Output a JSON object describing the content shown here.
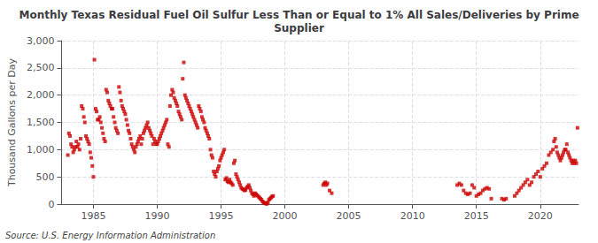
{
  "chart_data": {
    "type": "scatter",
    "title": "Monthly Texas Residual Fuel Oil Sulfur Less Than or Equal to 1% All Sales/Deliveries by Prime\nSupplier",
    "ylabel": "Thousand Gallons per Day",
    "annotation": "Source: U.S. Energy Information Administration",
    "color": "#cc0000",
    "marker": "square",
    "grid": true,
    "xlim": [
      1982.5,
      2023
    ],
    "xticks": [
      1985,
      1990,
      1995,
      2000,
      2005,
      2010,
      2015,
      2020
    ],
    "ylim": [
      0,
      3000
    ],
    "yticks": [
      0,
      500,
      {
        "value": 1000,
        "label": "1,000"
      },
      {
        "value": 1500,
        "label": "1,500"
      },
      {
        "value": 2000,
        "label": "2,000"
      },
      {
        "value": 2500,
        "label": "2,500"
      },
      {
        "value": 3000,
        "label": "3,000"
      }
    ],
    "x": [
      1983.0,
      1983.08,
      1983.17,
      1983.25,
      1983.33,
      1983.42,
      1983.5,
      1983.58,
      1983.67,
      1983.75,
      1983.83,
      1983.92,
      1984.0,
      1984.08,
      1984.17,
      1984.25,
      1984.33,
      1984.42,
      1984.5,
      1984.58,
      1984.67,
      1984.75,
      1984.83,
      1984.92,
      1985.0,
      1985.08,
      1985.17,
      1985.25,
      1985.33,
      1985.42,
      1985.5,
      1985.58,
      1985.67,
      1985.75,
      1985.83,
      1985.92,
      1986.0,
      1986.08,
      1986.17,
      1986.25,
      1986.33,
      1986.42,
      1986.5,
      1986.58,
      1986.67,
      1986.75,
      1986.83,
      1986.92,
      1987.0,
      1987.08,
      1987.17,
      1987.25,
      1987.33,
      1987.42,
      1987.5,
      1987.58,
      1987.67,
      1987.75,
      1987.83,
      1987.92,
      1988.0,
      1988.08,
      1988.17,
      1988.25,
      1988.33,
      1988.42,
      1988.5,
      1988.58,
      1988.67,
      1988.75,
      1988.83,
      1988.92,
      1989.0,
      1989.08,
      1989.17,
      1989.25,
      1989.33,
      1989.42,
      1989.5,
      1989.58,
      1989.67,
      1989.75,
      1989.83,
      1989.92,
      1990.0,
      1990.08,
      1990.17,
      1990.25,
      1990.33,
      1990.42,
      1990.5,
      1990.58,
      1990.67,
      1990.75,
      1990.83,
      1990.92,
      1991.0,
      1991.08,
      1991.17,
      1991.25,
      1991.33,
      1991.42,
      1991.5,
      1991.58,
      1991.67,
      1991.75,
      1991.83,
      1991.92,
      1992.0,
      1992.08,
      1992.17,
      1992.25,
      1992.33,
      1992.42,
      1992.5,
      1992.58,
      1992.67,
      1992.75,
      1992.83,
      1992.92,
      1993.0,
      1993.08,
      1993.17,
      1993.25,
      1993.33,
      1993.42,
      1993.5,
      1993.58,
      1993.67,
      1993.75,
      1993.83,
      1993.92,
      1994.0,
      1994.08,
      1994.17,
      1994.25,
      1994.33,
      1994.42,
      1994.5,
      1994.58,
      1994.67,
      1994.75,
      1994.83,
      1994.92,
      1995.0,
      1995.08,
      1995.17,
      1995.25,
      1995.33,
      1995.42,
      1995.5,
      1995.58,
      1995.67,
      1995.75,
      1995.83,
      1995.92,
      1996.0,
      1996.08,
      1996.17,
      1996.25,
      1996.33,
      1996.42,
      1996.5,
      1996.58,
      1996.67,
      1996.75,
      1996.83,
      1996.92,
      1997.0,
      1997.08,
      1997.17,
      1997.25,
      1997.33,
      1997.42,
      1997.5,
      1997.58,
      1997.67,
      1997.75,
      1997.83,
      1997.92,
      1998.0,
      1998.08,
      1998.17,
      1998.25,
      1998.33,
      1998.42,
      1998.5,
      1998.58,
      1998.67,
      1998.75,
      1998.83,
      1998.92,
      1999.0,
      1999.08,
      2003.0,
      2003.08,
      2003.17,
      2003.25,
      2003.33,
      2003.5,
      2003.67,
      2013.5,
      2013.67,
      2013.83,
      2014.0,
      2014.17,
      2014.33,
      2014.5,
      2014.67,
      2014.83,
      2015.0,
      2015.17,
      2015.33,
      2015.5,
      2015.67,
      2015.83,
      2016.0,
      2016.17,
      2017.0,
      2017.17,
      2017.33,
      2018.0,
      2018.17,
      2018.33,
      2018.5,
      2018.67,
      2018.83,
      2019.0,
      2019.17,
      2019.33,
      2019.5,
      2019.67,
      2019.83,
      2020.0,
      2020.17,
      2020.33,
      2020.5,
      2020.67,
      2020.83,
      2021.0,
      2021.08,
      2021.17,
      2021.25,
      2021.33,
      2021.42,
      2021.5,
      2021.58,
      2021.67,
      2021.75,
      2021.83,
      2021.92,
      2022.0,
      2022.08,
      2022.17,
      2022.25,
      2022.33,
      2022.42,
      2022.5,
      2022.58,
      2022.67,
      2022.75,
      2022.83,
      2022.92
    ],
    "values": [
      900,
      1300,
      1250,
      1100,
      1050,
      950,
      1000,
      1050,
      1150,
      1050,
      1100,
      1000,
      1200,
      1800,
      1750,
      1600,
      1500,
      1250,
      1200,
      1150,
      1100,
      950,
      850,
      700,
      500,
      2650,
      1750,
      1700,
      1550,
      1550,
      1600,
      1500,
      1400,
      1300,
      1200,
      1150,
      2100,
      2050,
      1900,
      1850,
      1800,
      1750,
      1750,
      1600,
      1500,
      1400,
      1350,
      1300,
      2150,
      2050,
      1900,
      1800,
      1750,
      1700,
      1650,
      1550,
      1450,
      1350,
      1300,
      1200,
      1100,
      1050,
      1000,
      950,
      1050,
      1100,
      1150,
      1200,
      1250,
      1100,
      1200,
      1300,
      1350,
      1400,
      1450,
      1500,
      1400,
      1350,
      1300,
      1250,
      1100,
      1200,
      1150,
      1100,
      1100,
      1150,
      1200,
      1250,
      1300,
      1350,
      1400,
      1450,
      1500,
      1550,
      1100,
      1050,
      1800,
      2000,
      2100,
      2050,
      1950,
      1900,
      1850,
      1800,
      1700,
      1650,
      1600,
      1550,
      2300,
      2600,
      2000,
      1950,
      1900,
      1850,
      1800,
      1750,
      1700,
      1650,
      1600,
      1550,
      1500,
      1450,
      1400,
      1800,
      1750,
      1700,
      1600,
      1550,
      1500,
      1400,
      1350,
      1300,
      1250,
      1200,
      1000,
      900,
      850,
      600,
      550,
      500,
      600,
      650,
      700,
      800,
      850,
      900,
      950,
      1000,
      450,
      480,
      420,
      400,
      450,
      400,
      380,
      350,
      750,
      800,
      550,
      500,
      450,
      400,
      350,
      300,
      280,
      270,
      250,
      260,
      300,
      320,
      350,
      300,
      250,
      200,
      180,
      150,
      200,
      180,
      160,
      140,
      120,
      100,
      80,
      50,
      30,
      20,
      10,
      5,
      30,
      80,
      100,
      120,
      140,
      150,
      350,
      380,
      400,
      350,
      380,
      250,
      200,
      350,
      380,
      350,
      250,
      200,
      180,
      200,
      350,
      300,
      150,
      180,
      200,
      250,
      280,
      300,
      280,
      100,
      100,
      80,
      100,
      150,
      200,
      250,
      300,
      350,
      400,
      450,
      350,
      400,
      500,
      550,
      600,
      500,
      650,
      700,
      750,
      900,
      950,
      1000,
      1150,
      1200,
      1050,
      950,
      900,
      850,
      800,
      850,
      900,
      950,
      1000,
      1000,
      1100,
      950,
      900,
      850,
      800,
      750,
      800,
      750,
      800,
      750,
      1400
    ]
  }
}
